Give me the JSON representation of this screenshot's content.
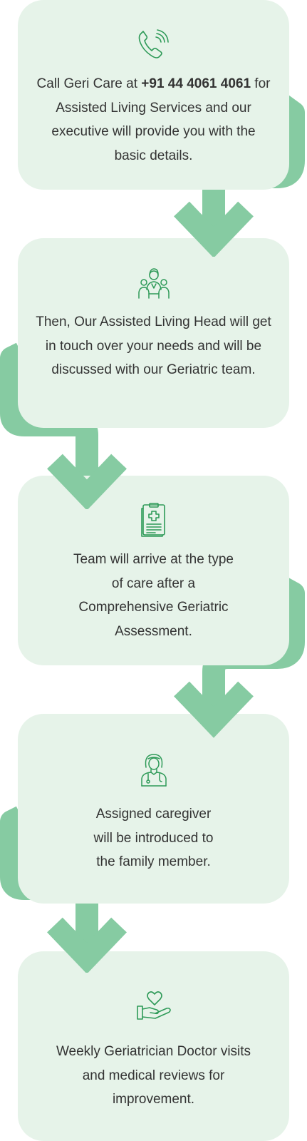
{
  "colors": {
    "card_bg": "#e6f3e9",
    "arrow": "#86cba2",
    "icon": "#2e9a58"
  },
  "steps": [
    {
      "icon": "phone-icon",
      "text_prefix": "Call Geri Care at ",
      "phone": "+91 44 4061 4061",
      "text_suffix": " for Assisted Living Services and our executive will provide you with the basic details."
    },
    {
      "icon": "team-icon",
      "text": "Then, Our Assisted Living Head will get in touch over your needs and will be discussed with our Geriatric team."
    },
    {
      "icon": "medical-report-icon",
      "text": "Team will arrive at the type of care after a Comprehensive Geriatric Assessment."
    },
    {
      "icon": "caregiver-icon",
      "text": "Assigned caregiver will be introduced to the family member."
    },
    {
      "icon": "heart-hand-icon",
      "text": "Weekly Geriatrician Doctor visits and medical reviews for improvement."
    }
  ]
}
